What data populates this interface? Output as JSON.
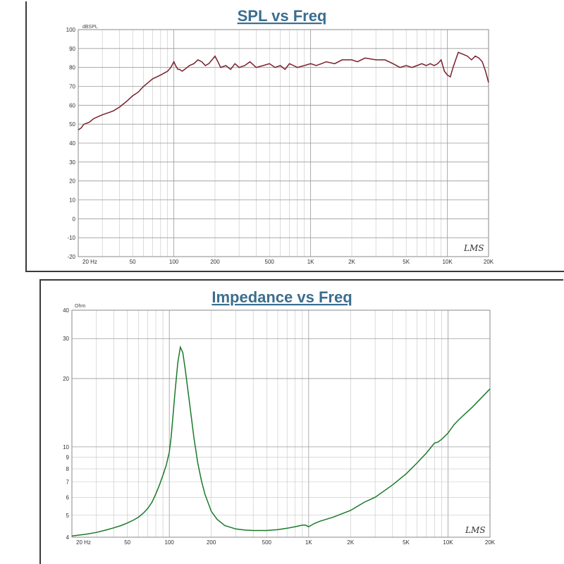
{
  "chart_data": [
    {
      "type": "line",
      "title": "SPL vs Freq",
      "ylabel": "dBSPL",
      "xlabel": "",
      "xscale": "log",
      "xlim": [
        20,
        20000
      ],
      "ylim": [
        -20,
        100
      ],
      "x_ticks": [
        {
          "value": 20,
          "label": "20 Hz"
        },
        {
          "value": 50,
          "label": "50"
        },
        {
          "value": 100,
          "label": "100"
        },
        {
          "value": 200,
          "label": "200"
        },
        {
          "value": 500,
          "label": "500"
        },
        {
          "value": 1000,
          "label": "1K"
        },
        {
          "value": 2000,
          "label": "2K"
        },
        {
          "value": 5000,
          "label": "5K"
        },
        {
          "value": 10000,
          "label": "10K"
        },
        {
          "value": 20000,
          "label": "20K"
        }
      ],
      "y_ticks": [
        {
          "value": 100,
          "label": "100"
        },
        {
          "value": 90,
          "label": "90"
        },
        {
          "value": 80,
          "label": "80"
        },
        {
          "value": 70,
          "label": "70"
        },
        {
          "value": 60,
          "label": "60"
        },
        {
          "value": 50,
          "label": "50"
        },
        {
          "value": 40,
          "label": "40"
        },
        {
          "value": 30,
          "label": "30"
        },
        {
          "value": 20,
          "label": "20"
        },
        {
          "value": 10,
          "label": "10"
        },
        {
          "value": 0,
          "label": "0"
        },
        {
          "value": -10,
          "label": "-10"
        },
        {
          "value": -20,
          "label": "-20"
        }
      ],
      "grid": true,
      "line_color": "#7a1f2b",
      "watermark": "LMS",
      "series": [
        {
          "x": [
            20,
            21,
            22,
            24,
            26,
            28,
            30,
            33,
            36,
            40,
            45,
            50,
            55,
            60,
            65,
            70,
            75,
            80,
            85,
            90,
            95,
            100,
            103,
            107,
            110,
            115,
            120,
            130,
            140,
            150,
            160,
            170,
            180,
            190,
            200,
            210,
            220,
            240,
            260,
            280,
            300,
            330,
            360,
            400,
            450,
            500,
            550,
            600,
            650,
            700,
            750,
            800,
            900,
            1000,
            1100,
            1200,
            1300,
            1500,
            1700,
            2000,
            2200,
            2500,
            3000,
            3500,
            4000,
            4500,
            5000,
            5500,
            6000,
            6500,
            7000,
            7500,
            8000,
            8500,
            9000,
            9500,
            10000,
            10500,
            11000,
            12000,
            13000,
            14000,
            15000,
            16000,
            17000,
            18000,
            19000,
            20000
          ],
          "y": [
            47,
            48,
            50,
            51,
            53,
            54,
            55,
            56,
            57,
            59,
            62,
            65,
            67,
            70,
            72,
            74,
            75,
            76,
            77,
            78,
            80,
            83,
            81,
            79,
            79,
            78,
            79,
            81,
            82,
            84,
            83,
            81,
            82,
            84,
            86,
            83,
            80,
            81,
            79,
            82,
            80,
            81,
            83,
            80,
            81,
            82,
            80,
            81,
            79,
            82,
            81,
            80,
            81,
            82,
            81,
            82,
            83,
            82,
            84,
            84,
            83,
            85,
            84,
            84,
            82,
            80,
            81,
            80,
            81,
            82,
            81,
            82,
            81,
            82,
            84,
            78,
            76,
            75,
            80,
            88,
            87,
            86,
            84,
            86,
            85,
            83,
            78,
            72
          ]
        }
      ]
    },
    {
      "type": "line",
      "title": "Impedance vs Freq",
      "ylabel": "Ohm",
      "xlabel": "",
      "xscale": "log",
      "yscale": "log",
      "xlim": [
        20,
        20000
      ],
      "ylim": [
        4,
        40
      ],
      "x_ticks": [
        {
          "value": 20,
          "label": "20 Hz"
        },
        {
          "value": 50,
          "label": "50"
        },
        {
          "value": 100,
          "label": "100"
        },
        {
          "value": 200,
          "label": "200"
        },
        {
          "value": 500,
          "label": "500"
        },
        {
          "value": 1000,
          "label": "1K"
        },
        {
          "value": 2000,
          "label": "2K"
        },
        {
          "value": 5000,
          "label": "5K"
        },
        {
          "value": 10000,
          "label": "10K"
        },
        {
          "value": 20000,
          "label": "20K"
        }
      ],
      "y_ticks": [
        {
          "value": 40,
          "label": "40"
        },
        {
          "value": 30,
          "label": "30"
        },
        {
          "value": 20,
          "label": "20"
        },
        {
          "value": 10,
          "label": "10"
        },
        {
          "value": 9,
          "label": "9"
        },
        {
          "value": 8,
          "label": "8"
        },
        {
          "value": 7,
          "label": "7"
        },
        {
          "value": 6,
          "label": "6"
        },
        {
          "value": 5,
          "label": "5"
        },
        {
          "value": 4,
          "label": "4"
        }
      ],
      "grid": true,
      "line_color": "#1a7a2a",
      "watermark": "LMS",
      "series": [
        {
          "x": [
            20,
            25,
            30,
            35,
            40,
            45,
            50,
            55,
            60,
            65,
            70,
            75,
            80,
            85,
            90,
            95,
            100,
            103,
            106,
            110,
            115,
            120,
            125,
            130,
            140,
            150,
            160,
            170,
            180,
            200,
            220,
            250,
            300,
            350,
            400,
            500,
            600,
            700,
            800,
            900,
            950,
            1000,
            1100,
            1200,
            1500,
            2000,
            2500,
            3000,
            4000,
            5000,
            6000,
            7000,
            8000,
            8500,
            9000,
            10000,
            11000,
            12000,
            15000,
            20000
          ],
          "y": [
            4.05,
            4.12,
            4.2,
            4.3,
            4.4,
            4.5,
            4.62,
            4.75,
            4.9,
            5.1,
            5.35,
            5.7,
            6.2,
            6.8,
            7.5,
            8.3,
            9.5,
            11,
            13.5,
            17.5,
            23.5,
            27.5,
            26,
            22,
            15.5,
            11,
            8.5,
            7.1,
            6.2,
            5.2,
            4.8,
            4.5,
            4.35,
            4.3,
            4.28,
            4.28,
            4.32,
            4.38,
            4.45,
            4.52,
            4.52,
            4.45,
            4.6,
            4.7,
            4.9,
            5.25,
            5.7,
            6.0,
            6.8,
            7.6,
            8.5,
            9.4,
            10.4,
            10.5,
            10.8,
            11.5,
            12.5,
            13.2,
            15,
            18
          ]
        }
      ]
    }
  ]
}
